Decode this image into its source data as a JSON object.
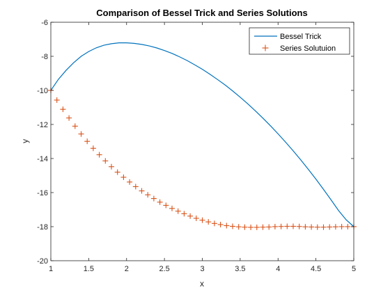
{
  "chart_data": {
    "type": "line",
    "title": "Comparison of Bessel Trick and Series Solutions",
    "xlabel": "x",
    "ylabel": "y",
    "xlim": [
      1,
      5
    ],
    "ylim": [
      -20,
      -6
    ],
    "xticks": [
      "1",
      "1.5",
      "2",
      "2.5",
      "3",
      "3.5",
      "4",
      "4.5",
      "5"
    ],
    "yticks": [
      "-20",
      "-18",
      "-16",
      "-14",
      "-12",
      "-10",
      "-8",
      "-6"
    ],
    "grid": false,
    "legend_position": "top-right",
    "series": [
      {
        "name": "Bessel Trick",
        "style": "line",
        "color": "#0072BD",
        "x": [
          1.0,
          1.1,
          1.2,
          1.3,
          1.4,
          1.5,
          1.6,
          1.7,
          1.8,
          1.9,
          2.0,
          2.1,
          2.2,
          2.3,
          2.4,
          2.5,
          2.6,
          2.7,
          2.8,
          2.9,
          3.0,
          3.1,
          3.2,
          3.3,
          3.4,
          3.5,
          3.6,
          3.7,
          3.8,
          3.9,
          4.0,
          4.1,
          4.2,
          4.3,
          4.4,
          4.5,
          4.6,
          4.7,
          4.8,
          4.9,
          5.0
        ],
        "y": [
          -10.0,
          -9.35,
          -8.83,
          -8.38,
          -8.0,
          -7.72,
          -7.5,
          -7.35,
          -7.26,
          -7.21,
          -7.21,
          -7.24,
          -7.3,
          -7.39,
          -7.51,
          -7.66,
          -7.83,
          -8.03,
          -8.25,
          -8.5,
          -8.76,
          -9.05,
          -9.36,
          -9.68,
          -10.03,
          -10.4,
          -10.79,
          -11.2,
          -11.63,
          -12.08,
          -12.55,
          -13.04,
          -13.55,
          -14.08,
          -14.64,
          -15.21,
          -15.81,
          -16.43,
          -17.06,
          -17.6,
          -18.0
        ]
      },
      {
        "name": "Series Solutuion",
        "style": "plus-markers",
        "color": "#D95319",
        "x": [
          1.0,
          1.08,
          1.16,
          1.24,
          1.32,
          1.4,
          1.48,
          1.56,
          1.64,
          1.72,
          1.8,
          1.88,
          1.96,
          2.04,
          2.12,
          2.2,
          2.28,
          2.36,
          2.44,
          2.52,
          2.6,
          2.68,
          2.76,
          2.84,
          2.92,
          3.0,
          3.08,
          3.16,
          3.24,
          3.32,
          3.4,
          3.48,
          3.56,
          3.64,
          3.72,
          3.8,
          3.88,
          3.96,
          4.04,
          4.12,
          4.2,
          4.28,
          4.36,
          4.44,
          4.52,
          4.6,
          4.68,
          4.76,
          4.84,
          4.92,
          5.0
        ],
        "y": [
          -10.0,
          -10.57,
          -11.11,
          -11.62,
          -12.1,
          -12.56,
          -12.99,
          -13.4,
          -13.78,
          -14.14,
          -14.48,
          -14.8,
          -15.1,
          -15.38,
          -15.65,
          -15.9,
          -16.13,
          -16.35,
          -16.56,
          -16.75,
          -16.93,
          -17.09,
          -17.24,
          -17.38,
          -17.51,
          -17.62,
          -17.72,
          -17.81,
          -17.88,
          -17.94,
          -17.98,
          -18.01,
          -18.03,
          -18.04,
          -18.04,
          -18.03,
          -18.02,
          -18.0,
          -17.99,
          -17.98,
          -17.98,
          -17.99,
          -18.01,
          -18.02,
          -18.03,
          -18.03,
          -18.02,
          -18.01,
          -18.0,
          -18.0,
          -18.0
        ]
      }
    ]
  }
}
